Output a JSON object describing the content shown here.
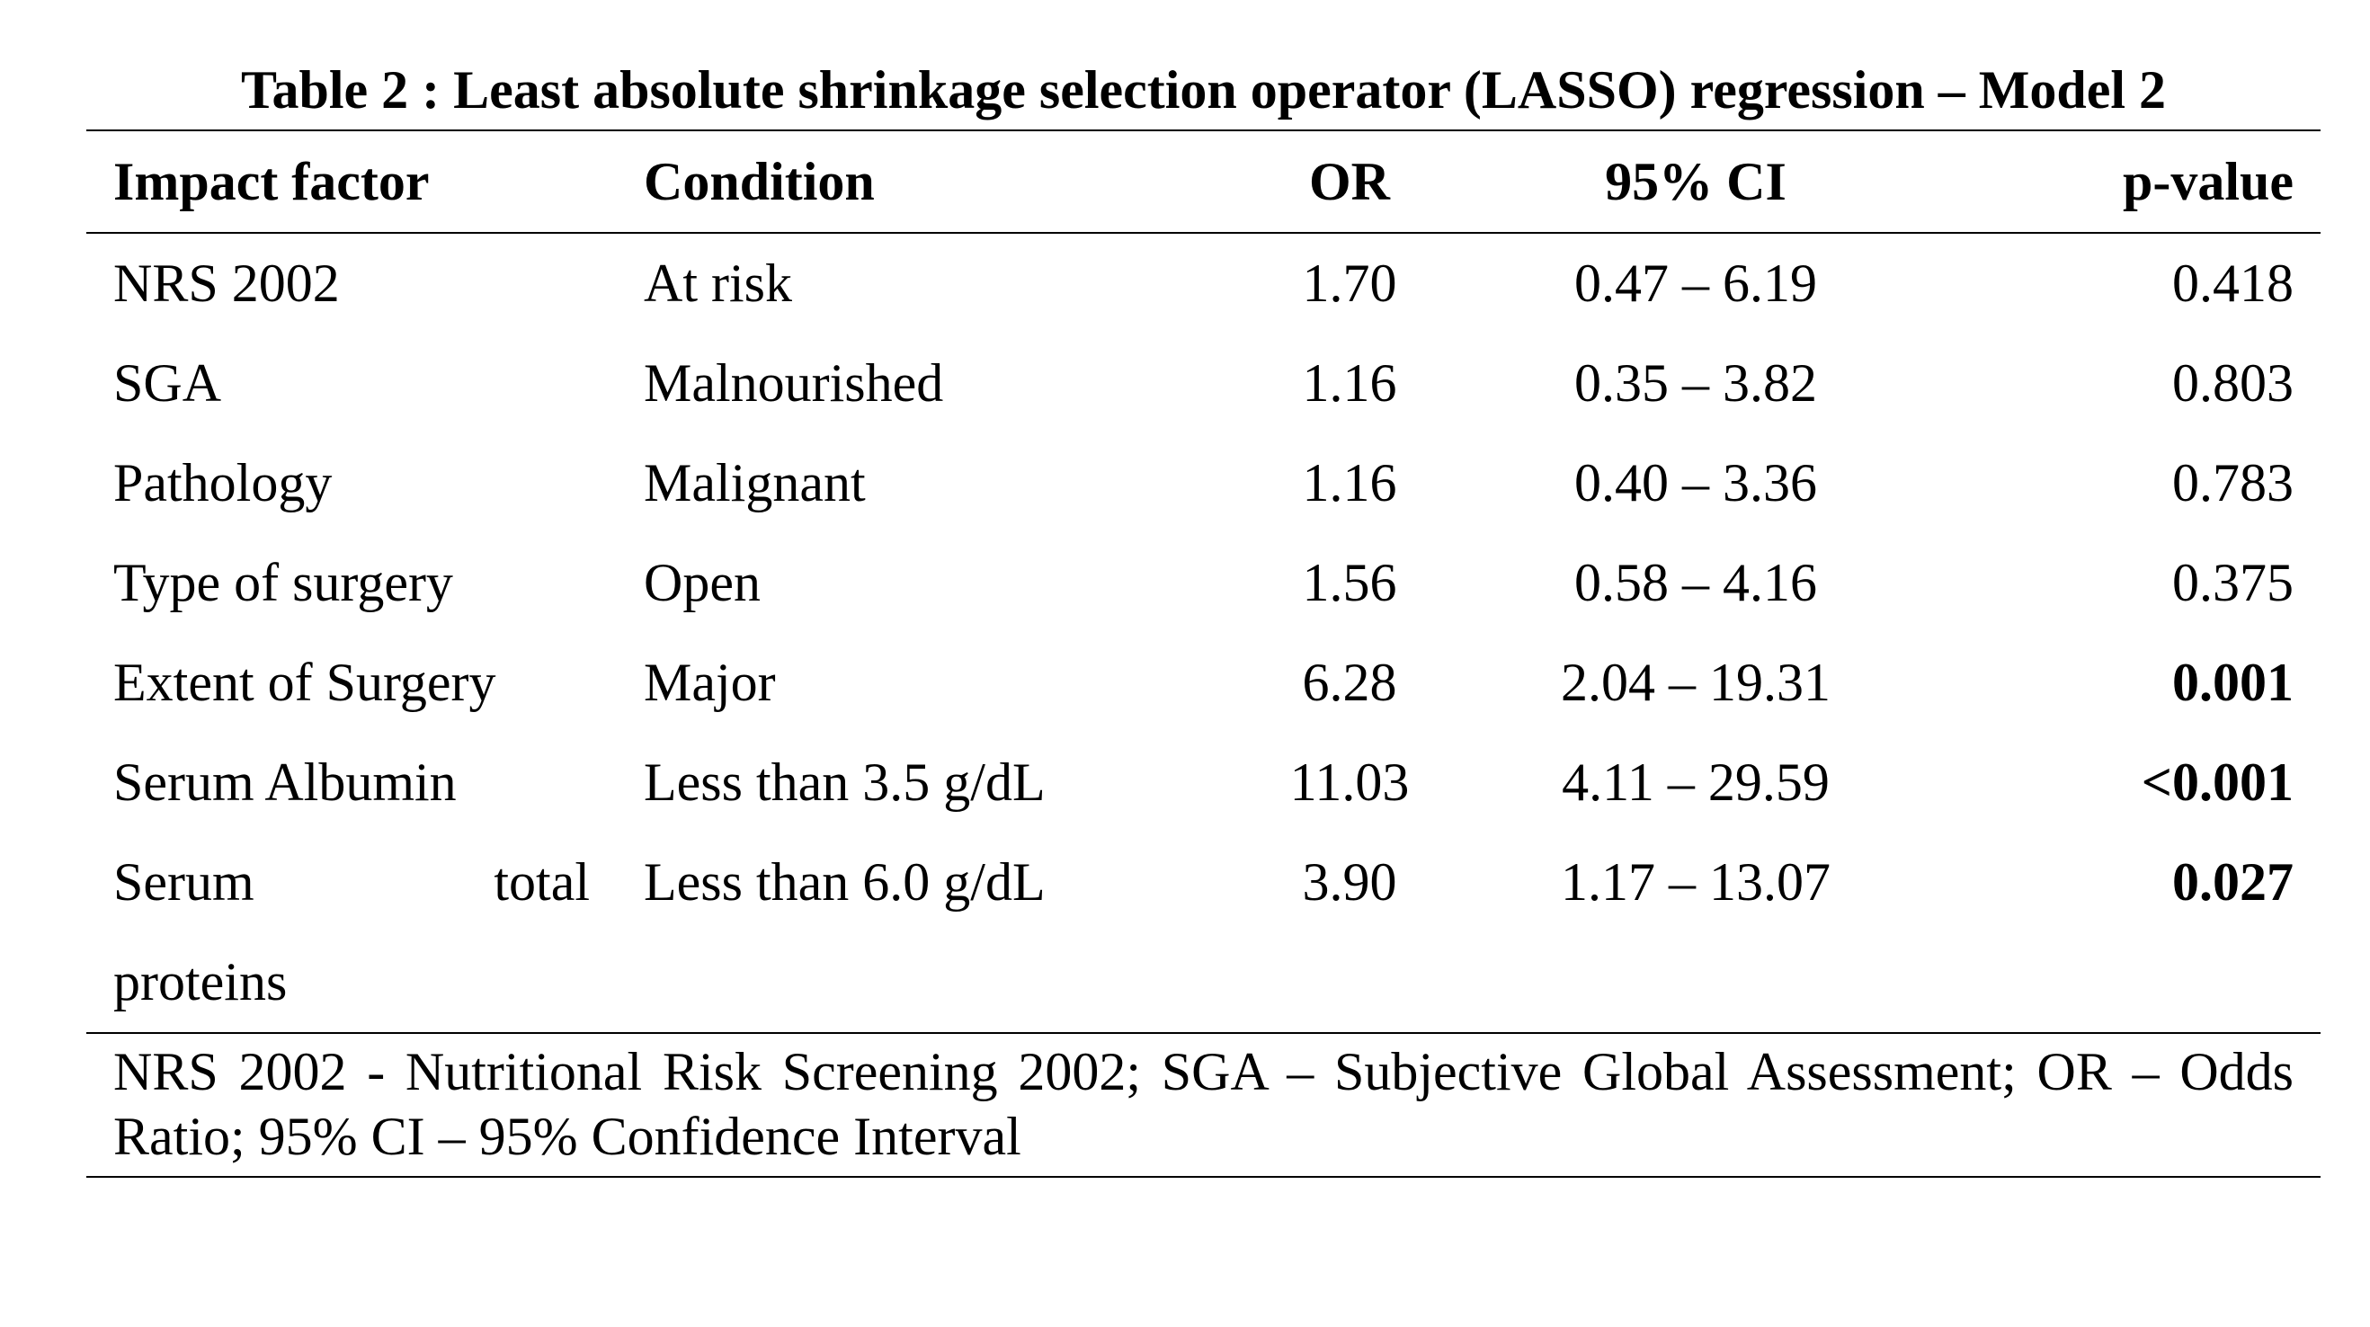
{
  "caption": "Table 2 : Least absolute shrinkage selection operator (LASSO) regression – Model 2",
  "columns": [
    "Impact factor",
    "Condition",
    "OR",
    "95% CI",
    "p-value"
  ],
  "rows": [
    {
      "factor": "NRS 2002",
      "condition": "At risk",
      "or": "1.70",
      "ci": "0.47 – 6.19",
      "p": "0.418",
      "p_bold": false
    },
    {
      "factor": "SGA",
      "condition": "Malnourished",
      "or": "1.16",
      "ci": "0.35 – 3.82",
      "p": "0.803",
      "p_bold": false
    },
    {
      "factor": "Pathology",
      "condition": "Malignant",
      "or": "1.16",
      "ci": "0.40 – 3.36",
      "p": "0.783",
      "p_bold": false
    },
    {
      "factor": "Type of surgery",
      "condition": "Open",
      "or": "1.56",
      "ci": "0.58 – 4.16",
      "p": "0.375",
      "p_bold": false
    },
    {
      "factor": "Extent of Surgery",
      "condition": "Major",
      "or": "6.28",
      "ci": "2.04 – 19.31",
      "p": "0.001",
      "p_bold": true
    },
    {
      "factor": "Serum Albumin",
      "condition": "Less than 3.5 g/dL",
      "or": "11.03",
      "ci": "4.11 – 29.59",
      "p": "<0.001",
      "p_bold": true
    },
    {
      "factor_line1_a": "Serum",
      "factor_line1_b": "total",
      "factor_line2": "proteins",
      "condition": "Less than 6.0 g/dL",
      "or": "3.90",
      "ci": "1.17 – 13.07",
      "p": "0.027",
      "p_bold": true
    }
  ],
  "footnote": "NRS 2002 - Nutritional Risk Screening  2002; SGA – Subjective Global Assessment; OR – Odds Ratio; 95% CI – 95% Confidence Interval"
}
